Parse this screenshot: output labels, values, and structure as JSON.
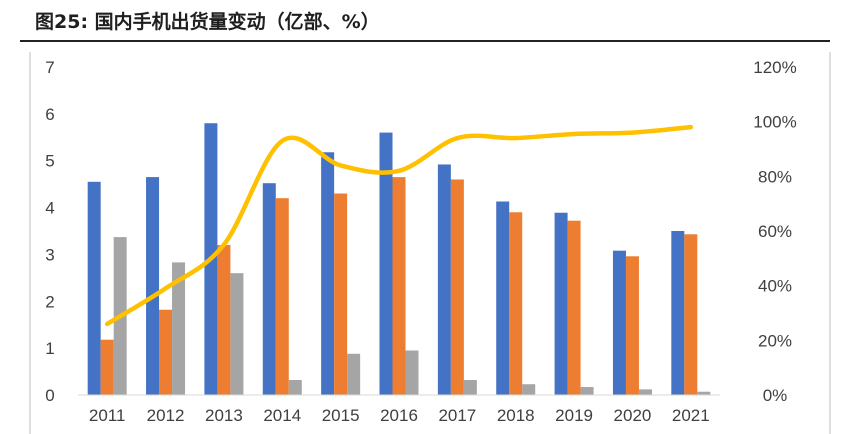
{
  "figure": {
    "title": "图25:   国内手机出货量变动（亿部、%）"
  },
  "chart_data": {
    "type": "bar",
    "categories": [
      "2011",
      "2012",
      "2013",
      "2014",
      "2015",
      "2016",
      "2017",
      "2018",
      "2019",
      "2020",
      "2021"
    ],
    "series": [
      {
        "type": "bar",
        "axis": "left",
        "color": "#4472C4",
        "values": [
          4.55,
          4.65,
          5.8,
          4.52,
          5.18,
          5.6,
          4.92,
          4.13,
          3.89,
          3.08,
          3.5
        ]
      },
      {
        "type": "bar",
        "axis": "left",
        "color": "#ED7D31",
        "values": [
          1.18,
          1.82,
          3.2,
          4.2,
          4.3,
          4.65,
          4.6,
          3.9,
          3.72,
          2.96,
          3.43
        ]
      },
      {
        "type": "bar",
        "axis": "left",
        "color": "#A5A5A5",
        "values": [
          3.37,
          2.83,
          2.6,
          0.32,
          0.88,
          0.95,
          0.32,
          0.23,
          0.17,
          0.12,
          0.07
        ]
      },
      {
        "type": "line",
        "axis": "right",
        "color": "#FFC000",
        "values": [
          0.26,
          0.39,
          0.55,
          0.93,
          0.84,
          0.82,
          0.94,
          0.94,
          0.955,
          0.96,
          0.98
        ]
      }
    ],
    "y_left": {
      "min": 0,
      "max": 7,
      "ticks": [
        "0",
        "1",
        "2",
        "3",
        "4",
        "5",
        "6",
        "7"
      ]
    },
    "y_right": {
      "min": 0,
      "max": 1.2,
      "ticks": [
        "0%",
        "20%",
        "40%",
        "60%",
        "80%",
        "100%",
        "120%"
      ]
    },
    "grid": false,
    "legend": "none"
  }
}
